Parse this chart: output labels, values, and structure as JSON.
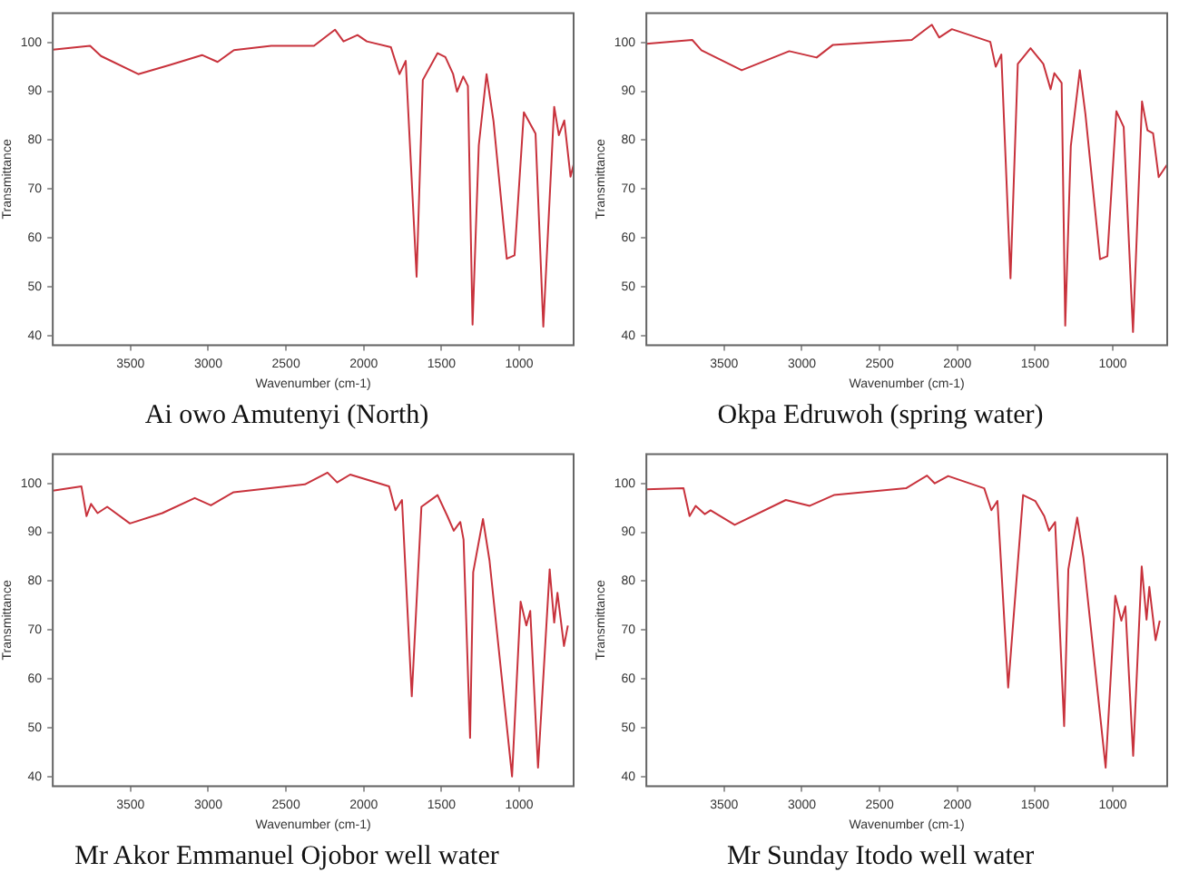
{
  "chart_data": [
    {
      "type": "line",
      "title": "Ai owo Amutenyi (North)",
      "xlabel": "Wavenumber (cm-1)",
      "ylabel": "Transmittance",
      "xlim": [
        4000,
        650
      ],
      "xticks": [
        3500,
        3000,
        2500,
        2000,
        1500,
        1000
      ],
      "ylim": [
        38,
        106
      ],
      "yticks": [
        40,
        50,
        60,
        70,
        80,
        90,
        100
      ],
      "grid": false,
      "legend": false,
      "marker": "none",
      "line_style": "solid",
      "series": [
        {
          "color": "#c8323c",
          "x": [
            4000,
            3760,
            3690,
            3450,
            3245,
            3040,
            2940,
            2835,
            2595,
            2320,
            2185,
            2130,
            2040,
            1980,
            1825,
            1770,
            1730,
            1660,
            1620,
            1525,
            1475,
            1425,
            1400,
            1360,
            1330,
            1300,
            1260,
            1210,
            1165,
            1080,
            1030,
            970,
            895,
            845,
            775,
            745,
            710,
            670,
            650
          ],
          "values": [
            98.5,
            99.3,
            97.2,
            93.5,
            95.4,
            97.4,
            96,
            98.4,
            99.3,
            99.3,
            102.6,
            100.2,
            101.5,
            100.2,
            99,
            93.5,
            96.2,
            52,
            92.3,
            97.8,
            97,
            93.5,
            89.9,
            93,
            91.1,
            42.2,
            78.9,
            93.5,
            83.8,
            55.7,
            56.4,
            85.7,
            81.3,
            41.8,
            86.8,
            81,
            84,
            72.5,
            75
          ]
        }
      ]
    },
    {
      "type": "line",
      "title": "Okpa Edruwoh (spring water)",
      "xlabel": "Wavenumber (cm-1)",
      "ylabel": "Transmittance",
      "xlim": [
        4000,
        650
      ],
      "xticks": [
        3500,
        3000,
        2500,
        2000,
        1500,
        1000
      ],
      "ylim": [
        38,
        106
      ],
      "yticks": [
        40,
        50,
        60,
        70,
        80,
        90,
        100
      ],
      "grid": false,
      "legend": false,
      "marker": "none",
      "line_style": "solid",
      "series": [
        {
          "color": "#c8323c",
          "x": [
            4000,
            3705,
            3646,
            3387,
            3081,
            2905,
            2800,
            2293,
            2164,
            2117,
            2035,
            1788,
            1753,
            1717,
            1658,
            1611,
            1529,
            1447,
            1400,
            1376,
            1329,
            1306,
            1270,
            1212,
            1176,
            1082,
            1035,
            977,
            930,
            870,
            812,
            777,
            741,
            705,
            650
          ],
          "values": [
            99.7,
            100.5,
            98.4,
            94.3,
            98.2,
            96.9,
            99.5,
            100.5,
            103.6,
            101,
            102.7,
            100.1,
            95,
            97.5,
            51.7,
            95.6,
            98.8,
            95.6,
            90.4,
            93.7,
            91.7,
            42,
            78.8,
            94.3,
            85.3,
            55.6,
            56.2,
            85.9,
            82.7,
            40.7,
            87.9,
            82,
            81.4,
            72.4,
            75
          ]
        }
      ]
    },
    {
      "type": "line",
      "title": "Mr Akor Emmanuel Ojobor well water",
      "xlabel": "Wavenumber (cm-1)",
      "ylabel": "Transmittance",
      "xlim": [
        4000,
        650
      ],
      "xticks": [
        3500,
        3000,
        2500,
        2000,
        1500,
        1000
      ],
      "ylim": [
        38,
        106
      ],
      "yticks": [
        40,
        50,
        60,
        70,
        80,
        90,
        100
      ],
      "grid": false,
      "legend": false,
      "marker": "none",
      "line_style": "solid",
      "series": [
        {
          "color": "#c8323c",
          "x": [
            4000,
            3816,
            3783,
            3754,
            3712,
            3650,
            3504,
            3296,
            3087,
            2983,
            2837,
            2379,
            2233,
            2171,
            2087,
            1837,
            1796,
            1754,
            1691,
            1629,
            1525,
            1462,
            1421,
            1379,
            1358,
            1316,
            1296,
            1233,
            1191,
            1046,
            991,
            954,
            929,
            879,
            804,
            775,
            754,
            712,
            687
          ],
          "values": [
            98.5,
            99.4,
            93.3,
            95.8,
            93.9,
            95.2,
            91.8,
            93.9,
            97,
            95.5,
            98.2,
            99.8,
            102.2,
            100.2,
            101.8,
            99.4,
            94.5,
            96.6,
            56.4,
            95.2,
            97.6,
            93.3,
            90.3,
            92.1,
            88.5,
            47.9,
            81.8,
            92.7,
            84.2,
            40,
            75.8,
            70.9,
            73.9,
            41.8,
            82.4,
            71.5,
            77.6,
            66.7,
            70.9
          ]
        }
      ]
    },
    {
      "type": "line",
      "title": "Mr Sunday Itodo well water",
      "xlabel": "Wavenumber (cm-1)",
      "ylabel": "Transmittance",
      "xlim": [
        4000,
        650
      ],
      "xticks": [
        3500,
        3000,
        2500,
        2000,
        1500,
        1000
      ],
      "ylim": [
        38,
        106
      ],
      "yticks": [
        40,
        50,
        60,
        70,
        80,
        90,
        100
      ],
      "grid": false,
      "legend": false,
      "marker": "none",
      "line_style": "solid",
      "series": [
        {
          "color": "#c8323c",
          "x": [
            4000,
            3761,
            3722,
            3683,
            3625,
            3587,
            3432,
            3103,
            2949,
            2794,
            2330,
            2195,
            2145,
            2059,
            1827,
            1781,
            1742,
            1673,
            1577,
            1499,
            1441,
            1410,
            1371,
            1313,
            1286,
            1229,
            1189,
            1046,
            984,
            945,
            919,
            869,
            814,
            783,
            765,
            725,
            698
          ],
          "values": [
            98.8,
            99,
            93.3,
            95.4,
            93.7,
            94.5,
            91.5,
            96.6,
            95.4,
            97.6,
            99,
            101.6,
            100,
            101.5,
            99,
            94.5,
            96.4,
            58.2,
            97.6,
            96.4,
            93.3,
            90.3,
            92.1,
            50.3,
            82.4,
            93,
            84.8,
            41.8,
            77,
            71.9,
            74.8,
            44.2,
            83,
            72.1,
            78.8,
            67.9,
            71.9
          ]
        }
      ]
    }
  ]
}
